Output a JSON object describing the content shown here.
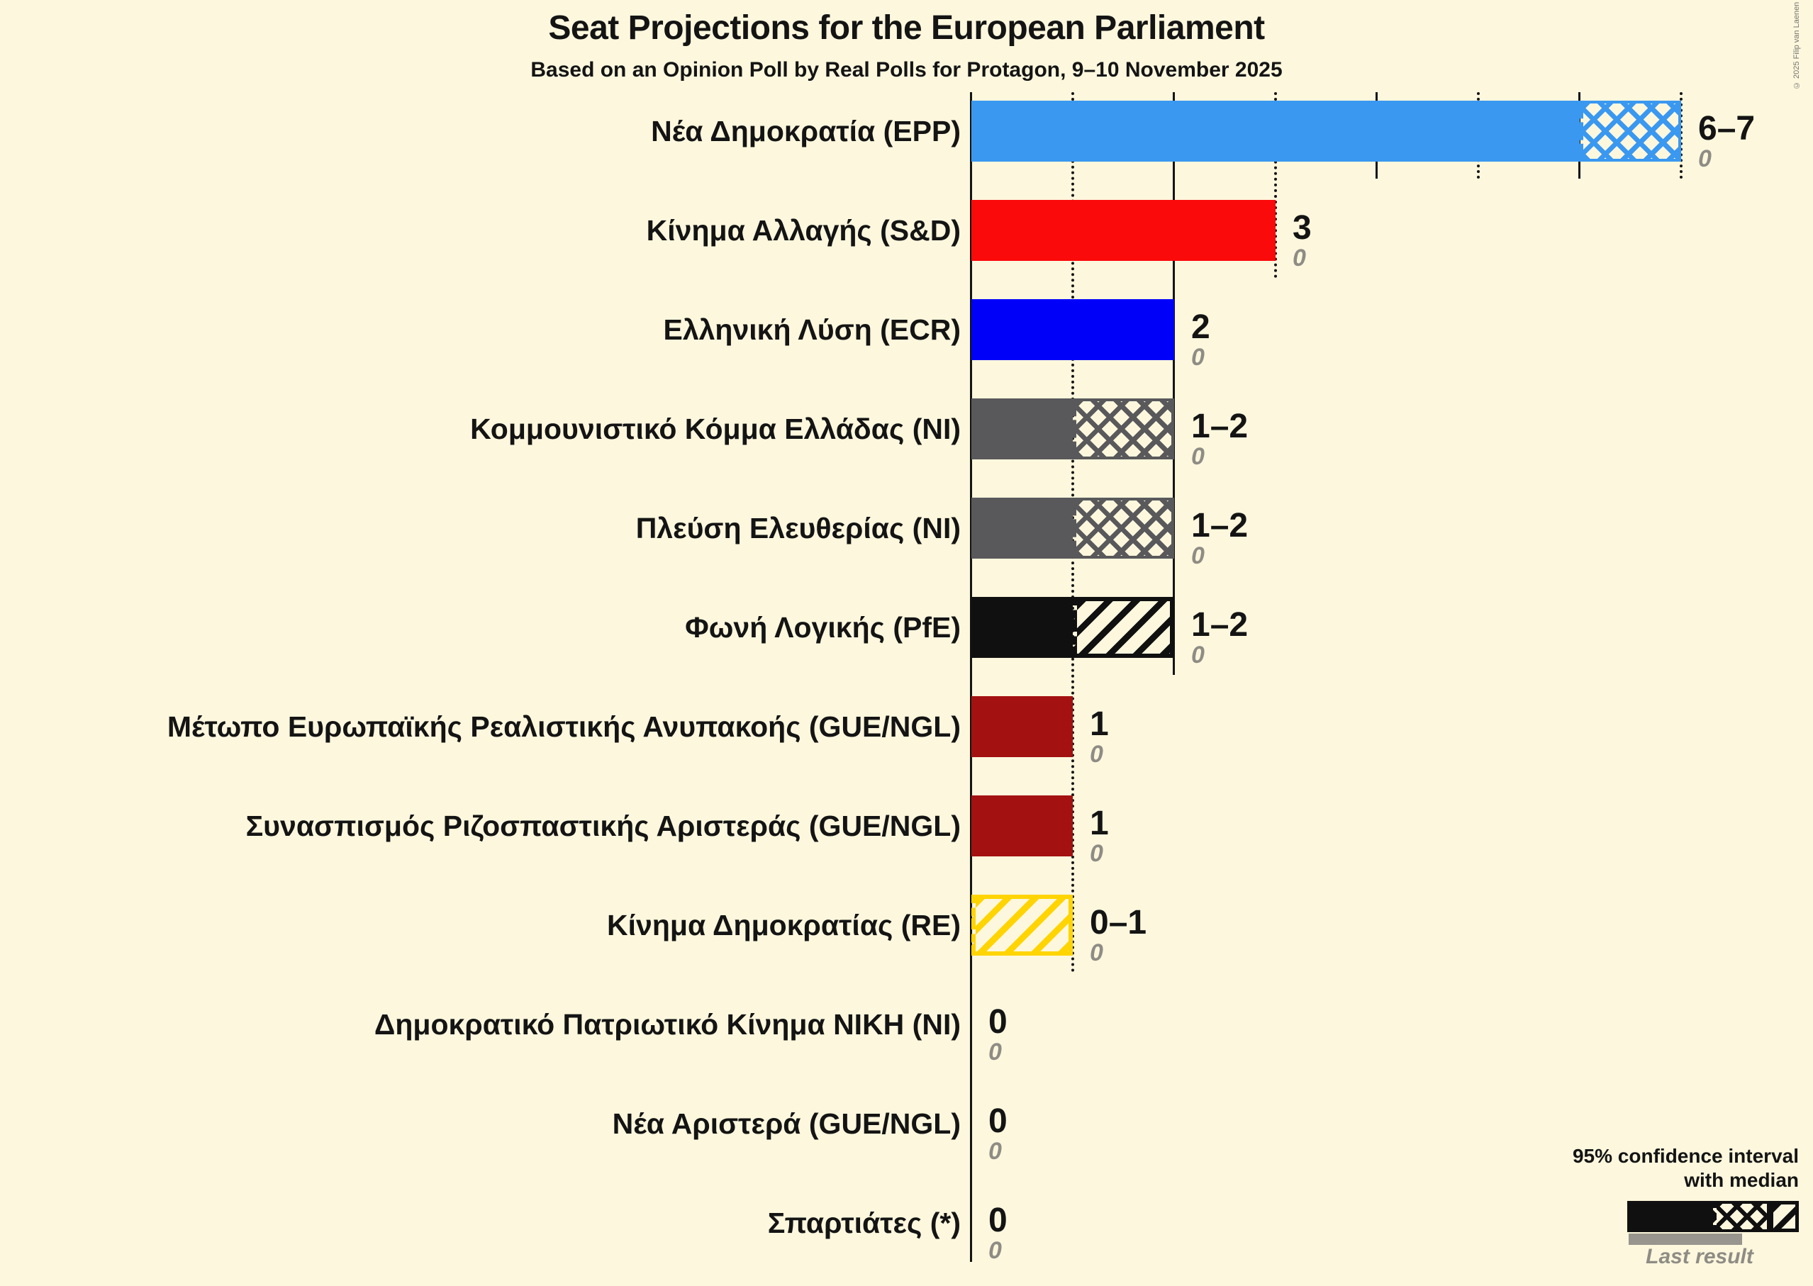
{
  "title": "Seat Projections for the European Parliament",
  "subtitle": "Based on an Opinion Poll by Real Polls for Protagon, 9–10 November 2025",
  "copyright": "© 2025 Filip van Laenen",
  "legend": {
    "ci_line1": "95% confidence interval",
    "ci_line2": "with median",
    "last_result_label": "Last result"
  },
  "colors": {
    "background": "#FCF7DD",
    "text": "#141414",
    "muted_text": "#8E8C84",
    "gridline": "#141414",
    "last_result_bar": "#97958D",
    "legend_sample": "#101010"
  },
  "chart_data": {
    "type": "bar",
    "orientation": "horizontal",
    "unit": "seats",
    "x_axis": {
      "min": 0,
      "max": 7,
      "gridline_step": 1
    },
    "title": "Seat Projections for the European Parliament",
    "subtitle": "Based on an Opinion Poll by Real Polls for Protagon, 9–10 November 2025",
    "parties": [
      {
        "label": "Νέα Δημοκρατία (EPP)",
        "seats_label": "6–7",
        "ci_low": 6,
        "median": 6,
        "ci_high": 7,
        "last_result": 0,
        "color": "#3A98F0",
        "ci_hatch": "cross"
      },
      {
        "label": "Κίνημα Αλλαγής (S&D)",
        "seats_label": "3",
        "ci_low": 3,
        "median": 3,
        "ci_high": 3,
        "last_result": 0,
        "color": "#FA0A0A",
        "ci_hatch": null
      },
      {
        "label": "Ελληνική Λύση (ECR)",
        "seats_label": "2",
        "ci_low": 2,
        "median": 2,
        "ci_high": 2,
        "last_result": 0,
        "color": "#0000FA",
        "ci_hatch": null
      },
      {
        "label": "Κομμουνιστικό Κόμμα Ελλάδας (NI)",
        "seats_label": "1–2",
        "ci_low": 1,
        "median": 1,
        "ci_high": 2,
        "last_result": 0,
        "color": "#59595B",
        "ci_hatch": "cross"
      },
      {
        "label": "Πλεύση Ελευθερίας (NI)",
        "seats_label": "1–2",
        "ci_low": 1,
        "median": 1,
        "ci_high": 2,
        "last_result": 0,
        "color": "#59595B",
        "ci_hatch": "cross"
      },
      {
        "label": "Φωνή Λογικής (PfE)",
        "seats_label": "1–2",
        "ci_low": 1,
        "median": 1,
        "ci_high": 2,
        "last_result": 0,
        "color": "#101010",
        "ci_hatch": "diagonal"
      },
      {
        "label": "Μέτωπο Ευρωπαϊκής Ρεαλιστικής Ανυπακοής (GUE/NGL)",
        "seats_label": "1",
        "ci_low": 1,
        "median": 1,
        "ci_high": 1,
        "last_result": 0,
        "color": "#A31111",
        "ci_hatch": null
      },
      {
        "label": "Συνασπισμός Ριζοσπαστικής Αριστεράς (GUE/NGL)",
        "seats_label": "1",
        "ci_low": 1,
        "median": 1,
        "ci_high": 1,
        "last_result": 0,
        "color": "#A31111",
        "ci_hatch": null
      },
      {
        "label": "Κίνημα Δημοκρατίας (RE)",
        "seats_label": "0–1",
        "ci_low": 0,
        "median": 0,
        "ci_high": 1,
        "last_result": 0,
        "color": "#FFD400",
        "ci_hatch": "diagonal"
      },
      {
        "label": "Δημοκρατικό Πατριωτικό Κίνημα ΝΙΚΗ (NI)",
        "seats_label": "0",
        "ci_low": 0,
        "median": 0,
        "ci_high": 0,
        "last_result": 0,
        "color": "#59595B",
        "ci_hatch": null
      },
      {
        "label": "Νέα Αριστερά (GUE/NGL)",
        "seats_label": "0",
        "ci_low": 0,
        "median": 0,
        "ci_high": 0,
        "last_result": 0,
        "color": "#A31111",
        "ci_hatch": null
      },
      {
        "label": "Σπαρτιάτες (*)",
        "seats_label": "0",
        "ci_low": 0,
        "median": 0,
        "ci_high": 0,
        "last_result": 0,
        "color": "#59595B",
        "ci_hatch": null
      }
    ]
  }
}
